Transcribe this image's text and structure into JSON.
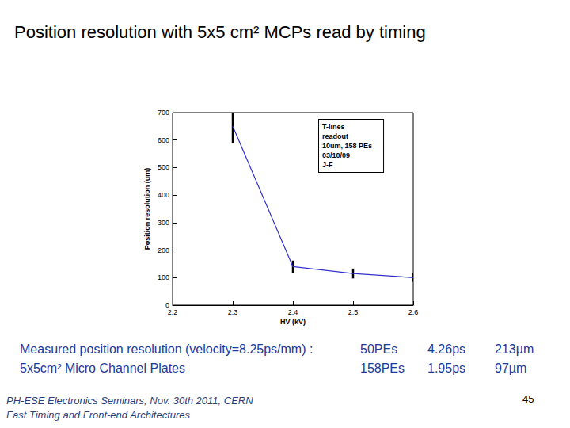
{
  "header": {
    "title": "Position resolution with 5x5 cm² MCPs read by timing"
  },
  "chart_data": {
    "type": "line",
    "x_label": "HV (kV)",
    "y_label": "Position resolution (um)",
    "x": [
      2.3,
      2.4,
      2.5,
      2.6
    ],
    "values": [
      650,
      140,
      115,
      100
    ],
    "errors": [
      60,
      22,
      18,
      15
    ],
    "color": "#3333cc",
    "xlim": [
      2.2,
      2.6
    ],
    "xticks": [
      2.2,
      2.3,
      2.4,
      2.5,
      2.6
    ],
    "ylim": [
      0,
      700
    ],
    "yticks": [
      0,
      100,
      200,
      300,
      400,
      500,
      600,
      700
    ],
    "grid": false,
    "annotation": [
      "T-lines",
      "readout",
      "10um, 158 PEs",
      "03/10/09",
      "J-F"
    ]
  },
  "table": {
    "rows": [
      [
        "Measured position resolution (velocity=8.25ps/mm) :",
        "50PEs",
        "4.26ps",
        "213µm"
      ],
      [
        "5x5cm² Micro Channel Plates",
        "158PEs",
        "1.95ps",
        "97µm"
      ]
    ]
  },
  "footer": [
    "PH-ESE Electronics Seminars, Nov. 30th 2011, CERN",
    "Fast Timing and Front-end Architectures"
  ],
  "page_number": 45
}
